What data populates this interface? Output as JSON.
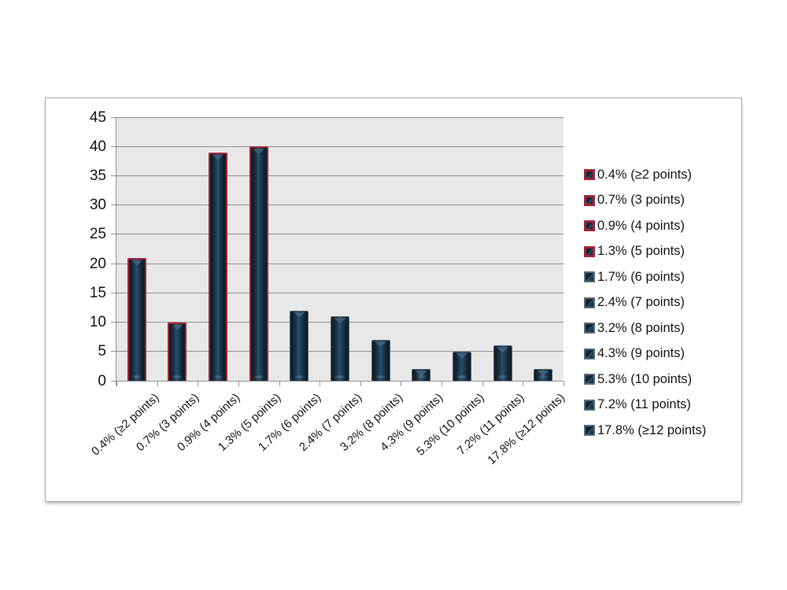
{
  "chart_data": {
    "type": "bar",
    "title": "",
    "xlabel": "",
    "ylabel": "",
    "categories": [
      "0.4% (≥2 points)",
      "0.7% (3 points)",
      "0.9% (4 points)",
      "1.3% (5 points)",
      "1.7% (6 points)",
      "2.4% (7 points)",
      "3.2% (8 points)",
      "4.3% (9 points)",
      "5.3% (10 points)",
      "7.2% (11 points)",
      "17.8% (≥12 points)"
    ],
    "values": [
      21,
      10,
      39,
      40,
      12,
      11,
      7,
      2,
      5,
      6,
      2
    ],
    "red_outline_count": 4,
    "ylim": [
      0,
      45
    ],
    "y_ticks": [
      0,
      5,
      10,
      15,
      20,
      25,
      30,
      35,
      40,
      45
    ],
    "grid": true,
    "legend_position": "right",
    "legend_entries": [
      "0.4% (≥2 points)",
      "0.7% (3 points)",
      "0.9% (4 points)",
      "1.3% (5 points)",
      "1.7% (6 points)",
      "2.4% (7 points)",
      "3.2% (8 points)",
      "4.3% (9 points)",
      "5.3% (10 points)",
      "7.2% (11 points)",
      "17.8% (≥12 points)"
    ]
  },
  "colors": {
    "plot_background": "#e8e8e8",
    "gridline": "#8f8f8f",
    "frame_border": "#a9a9a9",
    "bar_fill_dark": "#0a1a28",
    "bar_fill_light": "#2a4d68",
    "bar_red_outline": "#a12433",
    "bar_dark_outline": "#55646e",
    "text": "#111111"
  }
}
